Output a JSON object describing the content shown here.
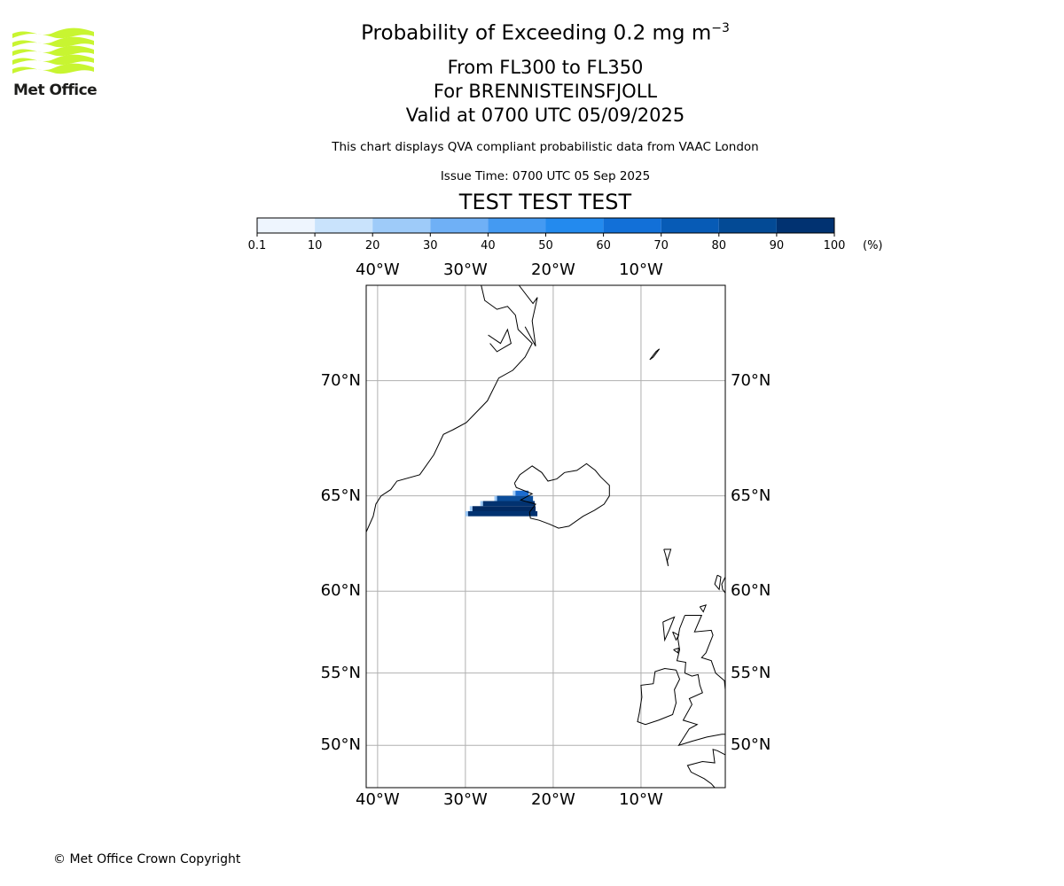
{
  "header": {
    "title": "Probability of Exceeding 0.2 mg m",
    "title_superscript": "−3",
    "level_range": "From FL300 to FL350",
    "volcano": "For BRENNISTEINSFJOLL",
    "valid_time": "Valid at 0700 UTC 05/09/2025",
    "note": "This chart displays QVA compliant probabilistic data from VAAC London",
    "issue_time": "Issue Time: 0700 UTC 05 Sep 2025",
    "test_banner": "TEST TEST TEST",
    "test_color": "#e00000"
  },
  "logo": {
    "text": "Met Office",
    "color": "#c8f531",
    "icon": "met-office-waves-logo"
  },
  "colorbar": {
    "unit": "(%)",
    "ticks": [
      "0.1",
      "10",
      "20",
      "30",
      "40",
      "50",
      "60",
      "70",
      "80",
      "90",
      "100"
    ],
    "colors": [
      "#eef5fe",
      "#c9e3fc",
      "#9ecbf9",
      "#6fb0f6",
      "#449af2",
      "#238aee",
      "#1270d8",
      "#075bb6",
      "#034a95",
      "#013271"
    ]
  },
  "map": {
    "projection": "mercator",
    "lon_range": [
      -41.3,
      -0.4
    ],
    "lat_range": [
      46.8,
      73.4
    ],
    "grid_lons": [
      -40,
      -30,
      -20,
      -10
    ],
    "grid_lats": [
      70,
      65,
      60,
      55,
      50
    ],
    "lon_labels": [
      "40°W",
      "30°W",
      "20°W",
      "10°W"
    ],
    "lat_labels": [
      "70°N",
      "65°N",
      "60°N",
      "55°N",
      "50°N"
    ],
    "ash_cloud": {
      "colors_by_row": [
        "#1b6cd0",
        "#0b4d9a",
        "#023270",
        "#012a63",
        "#013271"
      ],
      "lat_rows": [
        65.0,
        64.75,
        64.5,
        64.25,
        64.0
      ],
      "lon_start": [
        -24.3,
        -26.4,
        -28.0,
        -29.2,
        -29.7
      ],
      "lon_end": [
        -22.8,
        -22.3,
        -22.1,
        -22.0,
        -21.8
      ]
    }
  },
  "footer": {
    "copyright": "© Met Office Crown Copyright"
  }
}
